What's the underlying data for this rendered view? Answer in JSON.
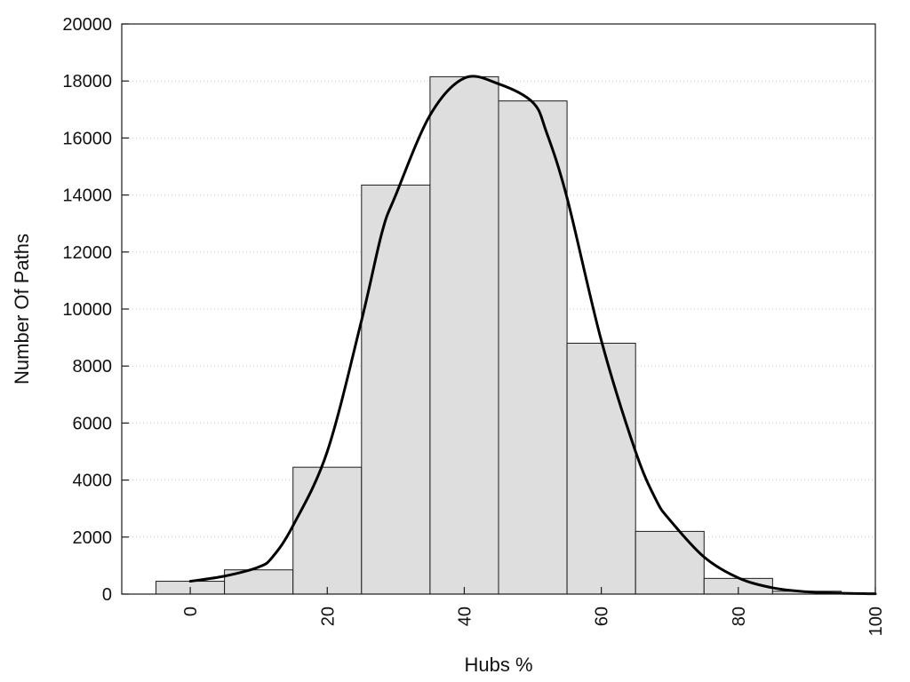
{
  "chart_data": {
    "type": "bar",
    "title": "",
    "xlabel": "Hubs %",
    "ylabel": "Number Of Paths",
    "xlim": [
      -10,
      100
    ],
    "ylim": [
      0,
      20000
    ],
    "x_ticks": [
      0,
      20,
      40,
      60,
      80,
      100
    ],
    "x_tick_labels": [
      "0",
      "20",
      "40",
      "60",
      "80",
      "100"
    ],
    "y_ticks": [
      0,
      2000,
      4000,
      6000,
      8000,
      10000,
      12000,
      14000,
      16000,
      18000,
      20000
    ],
    "y_tick_labels": [
      "0",
      "2000",
      "4000",
      "6000",
      "8000",
      "10000",
      "12000",
      "14000",
      "16000",
      "18000",
      "20000"
    ],
    "grid": "horizontal-dotted",
    "legend": "none",
    "bar_color": "#dedede",
    "curve_color": "#000000",
    "bins": [
      {
        "center": 0,
        "width": 10,
        "value": 450
      },
      {
        "center": 10,
        "width": 10,
        "value": 850
      },
      {
        "center": 20,
        "width": 10,
        "value": 4450
      },
      {
        "center": 30,
        "width": 10,
        "value": 14350
      },
      {
        "center": 40,
        "width": 10,
        "value": 18150
      },
      {
        "center": 50,
        "width": 10,
        "value": 17300
      },
      {
        "center": 60,
        "width": 10,
        "value": 8800
      },
      {
        "center": 70,
        "width": 10,
        "value": 2200
      },
      {
        "center": 80,
        "width": 10,
        "value": 550
      },
      {
        "center": 90,
        "width": 10,
        "value": 100
      }
    ],
    "density_curve": {
      "x": [
        0,
        5,
        10,
        12,
        15,
        20,
        25,
        28,
        30,
        35,
        40,
        45,
        50,
        52,
        55,
        60,
        65,
        68,
        70,
        75,
        80,
        85,
        90,
        95,
        100
      ],
      "y": [
        450,
        630,
        950,
        1300,
        2400,
        5000,
        9600,
        12700,
        14000,
        16800,
        18100,
        17900,
        17250,
        16200,
        13900,
        8900,
        5000,
        3300,
        2600,
        1300,
        570,
        220,
        80,
        30,
        10
      ]
    }
  }
}
